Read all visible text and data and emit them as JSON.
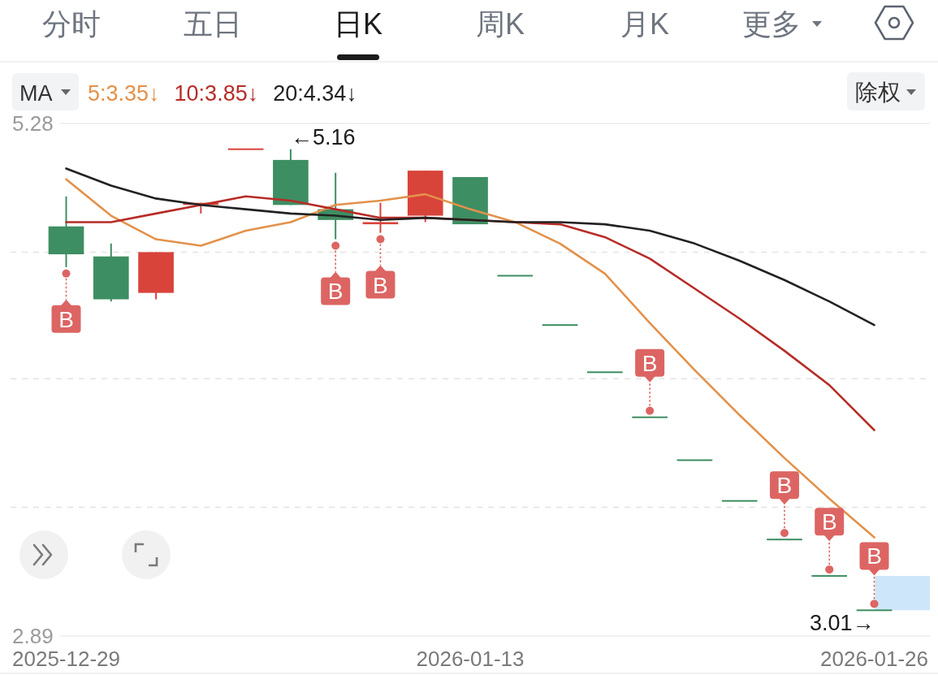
{
  "chart_data": {
    "type": "candlestick",
    "categories": [
      "2025-12-29",
      null,
      null,
      null,
      null,
      null,
      null,
      null,
      null,
      "2026-01-13",
      null,
      null,
      null,
      null,
      null,
      null,
      null,
      null,
      "2026-01-26"
    ],
    "ohlc": [
      [
        4.8,
        4.94,
        4.61,
        4.67
      ],
      [
        4.66,
        4.72,
        4.45,
        4.46
      ],
      [
        4.49,
        4.68,
        4.46,
        4.68
      ],
      [
        4.9,
        4.91,
        4.86,
        4.91
      ],
      [
        5.16,
        5.16,
        5.16,
        5.16
      ],
      [
        5.11,
        5.16,
        4.9,
        4.9
      ],
      [
        4.88,
        5.05,
        4.74,
        4.83
      ],
      [
        4.81,
        4.91,
        4.77,
        4.82
      ],
      [
        4.85,
        5.06,
        4.82,
        5.06
      ],
      [
        5.03,
        5.03,
        4.81,
        4.81
      ],
      [
        4.57,
        4.57,
        4.57,
        4.57
      ],
      [
        4.34,
        4.34,
        4.34,
        4.34
      ],
      [
        4.12,
        4.12,
        4.12,
        4.12
      ],
      [
        3.91,
        3.91,
        3.91,
        3.91
      ],
      [
        3.71,
        3.71,
        3.71,
        3.71
      ],
      [
        3.52,
        3.52,
        3.52,
        3.52
      ],
      [
        3.34,
        3.34,
        3.34,
        3.34
      ],
      [
        3.17,
        3.17,
        3.17,
        3.17
      ],
      [
        3.01,
        3.01,
        3.01,
        3.01
      ]
    ],
    "colors": [
      "#3e8e63",
      "#3e8e63",
      "#d8433a",
      "#d8433a",
      "#d8433a",
      "#3e8e63",
      "#3e8e63",
      "#d8433a",
      "#d8433a",
      "#3e8e63",
      "#3e8e63",
      "#3e8e63",
      "#3e8e63",
      "#3e8e63",
      "#3e8e63",
      "#3e8e63",
      "#3e8e63",
      "#3e8e63",
      "#3e8e63"
    ],
    "series": [
      {
        "name": "5:3.35↓",
        "type": "line",
        "color": "#e3914a",
        "values": [
          5.02,
          4.85,
          4.74,
          4.71,
          4.78,
          4.82,
          4.9,
          4.92,
          4.95,
          4.88,
          4.82,
          4.72,
          4.58,
          4.35,
          4.13,
          3.92,
          3.72,
          3.53,
          3.35
        ]
      },
      {
        "name": "10:3.85↓",
        "type": "line",
        "color": "#b72c27",
        "values": [
          4.82,
          4.82,
          4.86,
          4.9,
          4.94,
          4.92,
          4.88,
          4.84,
          4.84,
          4.83,
          4.82,
          4.81,
          4.75,
          4.65,
          4.51,
          4.37,
          4.22,
          4.06,
          3.85
        ]
      },
      {
        "name": "20:4.34↓",
        "type": "line",
        "color": "#222222",
        "values": [
          5.07,
          4.99,
          4.93,
          4.9,
          4.88,
          4.86,
          4.85,
          4.83,
          4.84,
          4.83,
          4.82,
          4.82,
          4.81,
          4.78,
          4.72,
          4.64,
          4.55,
          4.45,
          4.34
        ]
      },
      {
        "type": "scatter",
        "marker": "circle",
        "color": "#dc6563",
        "values": [
          4.58,
          null,
          null,
          null,
          null,
          null,
          4.71,
          4.74,
          null,
          null,
          null,
          null,
          null,
          3.94,
          null,
          null,
          3.37,
          3.2,
          3.04
        ],
        "value_labels": [
          "B",
          null,
          null,
          null,
          null,
          null,
          "B",
          "B",
          null,
          null,
          null,
          null,
          null,
          "B",
          null,
          null,
          "B",
          "B",
          "B"
        ]
      }
    ],
    "ylim": [
      2.89,
      5.28
    ],
    "yticks": [
      5.28,
      {
        "value": 4.68,
        "label": null
      },
      {
        "value": 4.09,
        "label": null
      },
      {
        "value": 3.49,
        "label": null
      },
      2.89
    ],
    "grid": "y",
    "legend": "top left",
    "legend_title": "MA",
    "bands": [
      {
        "axis": "y",
        "from": 3.01,
        "to": 3.17,
        "color": "#cde6f9"
      }
    ],
    "annotations": [
      "分时",
      "五日",
      "日K",
      "周K",
      "月K",
      "更多",
      "除权",
      "←5.16",
      {
        "text": "3.01→",
        "x": "2026-01-26",
        "y": 3.01
      }
    ]
  }
}
